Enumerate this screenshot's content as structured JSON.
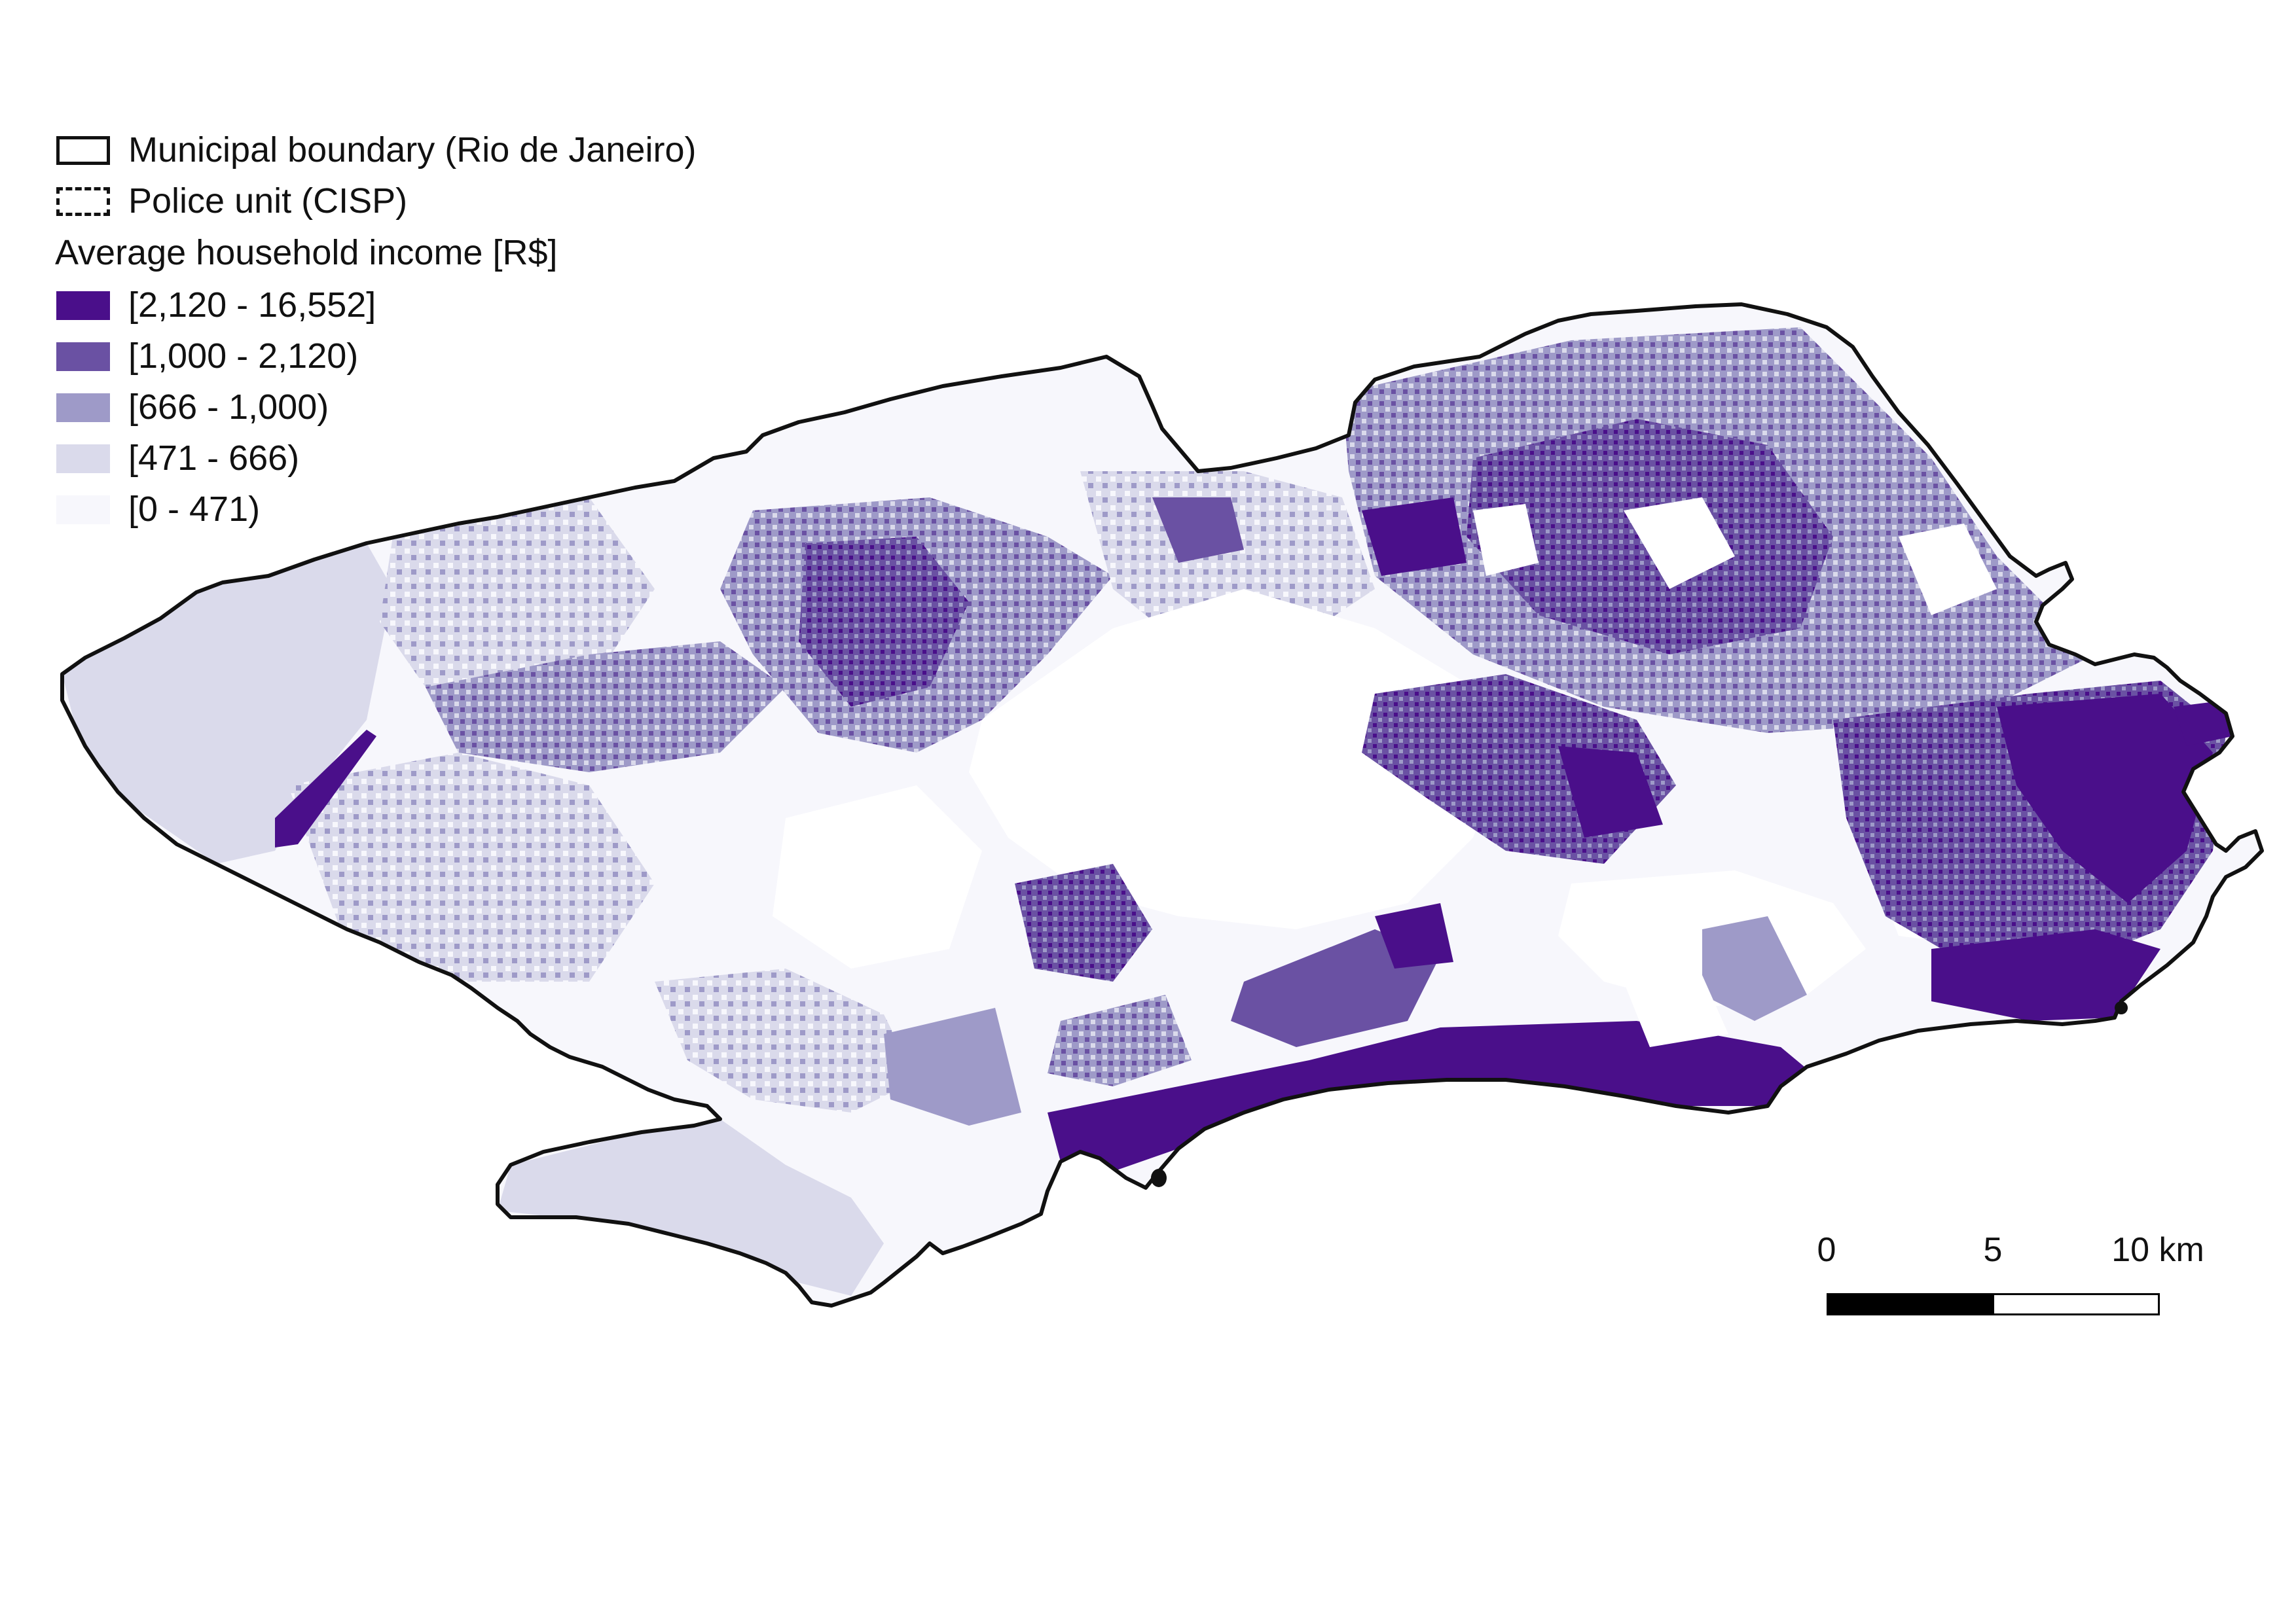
{
  "legend": {
    "boundary_label": "Municipal boundary (Rio de Janeiro)",
    "police_label": "Police unit (CISP)",
    "title": "Average household income [R$]",
    "classes": [
      {
        "label": "[2,120 - 16,552]",
        "color": "#4a0f8a"
      },
      {
        "label": "[1,000 - 2,120)",
        "color": "#6a51a3"
      },
      {
        "label": "[666 - 1,000)",
        "color": "#9e9ac8"
      },
      {
        "label": "[471 - 666)",
        "color": "#dadaeb"
      },
      {
        "label": "[0 - 471)",
        "color": "#f7f7fc"
      }
    ]
  },
  "scalebar": {
    "labels": [
      "0",
      "5",
      "10 km"
    ],
    "unit": "km"
  },
  "colors": {
    "boundary": "#111111",
    "background": "#ffffff"
  }
}
